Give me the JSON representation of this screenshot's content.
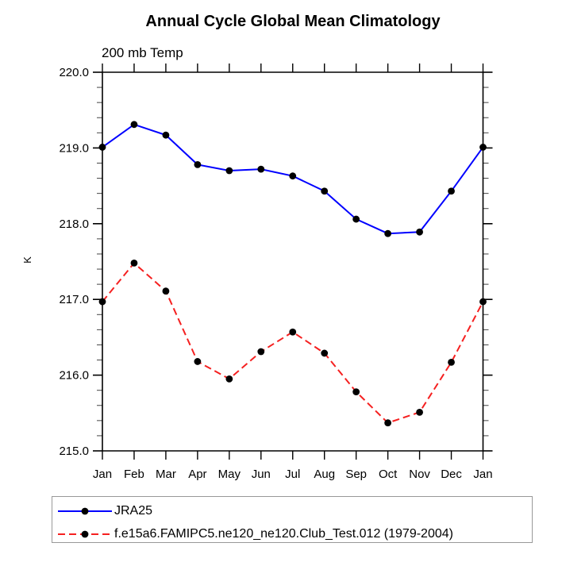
{
  "chart_data": {
    "type": "line",
    "title": "Annual Cycle Global Mean Climatology",
    "subtitle": "200 mb Temp",
    "ylabel": "K",
    "xlabel": "",
    "categories": [
      "Jan",
      "Feb",
      "Mar",
      "Apr",
      "May",
      "Jun",
      "Jul",
      "Aug",
      "Sep",
      "Oct",
      "Nov",
      "Dec",
      "Jan"
    ],
    "ylim": [
      215.0,
      220.0
    ],
    "y_major_ticks": [
      "220.0",
      "219.0",
      "218.0",
      "217.0",
      "216.0",
      "215.0"
    ],
    "y_minor_step": 0.2,
    "grid": "off",
    "legend_position": "below-left",
    "series": [
      {
        "name": "JRA25",
        "line_color": "#0000ff",
        "line_style": "solid",
        "marker": "filled-circle",
        "marker_color": "#000000",
        "values": [
          219.01,
          219.31,
          219.17,
          218.78,
          218.7,
          218.72,
          218.63,
          218.43,
          218.06,
          217.87,
          217.89,
          218.43,
          219.01
        ]
      },
      {
        "name": "f.e15a6.FAMIPC5.ne120_ne120.Club_Test.012 (1979-2004)",
        "line_color": "#f52020",
        "line_style": "dashed",
        "marker": "filled-circle",
        "marker_color": "#000000",
        "values": [
          216.97,
          217.48,
          217.11,
          216.18,
          215.95,
          216.31,
          216.57,
          216.29,
          215.78,
          215.37,
          215.51,
          216.17,
          216.97
        ]
      }
    ]
  }
}
